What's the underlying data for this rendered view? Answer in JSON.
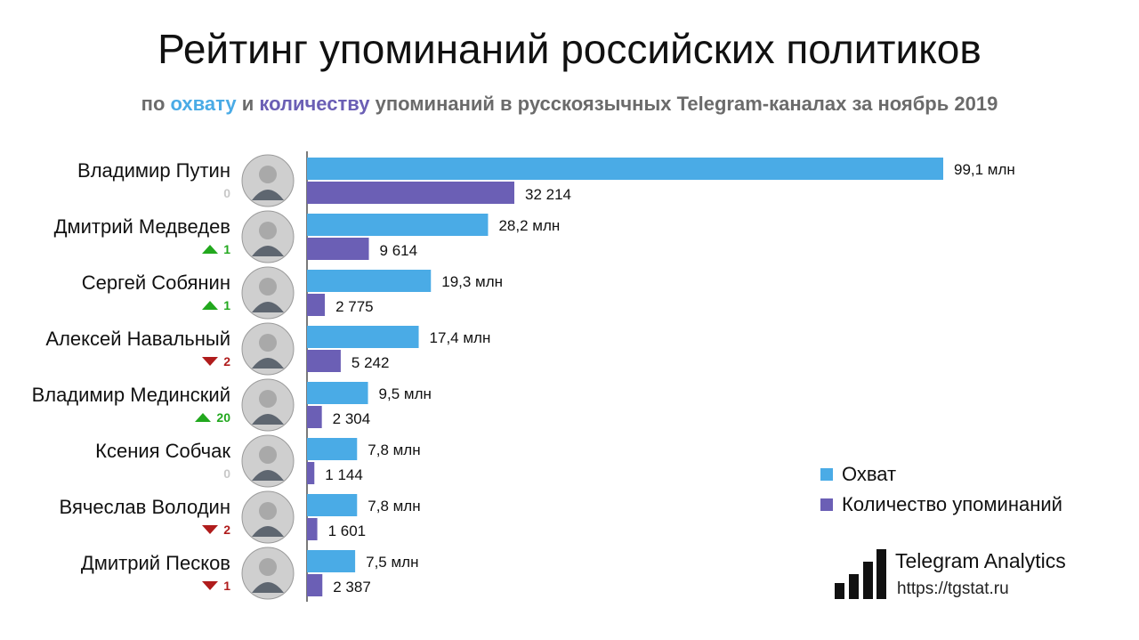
{
  "header": {
    "title": "Рейтинг упоминаний российских политиков",
    "subtitle_pre": "по ",
    "subtitle_reach": "охвату",
    "subtitle_mid": " и ",
    "subtitle_count": "количеству",
    "subtitle_post": " упоминаний в русскоязычных Telegram-каналах за ноябрь 2019"
  },
  "chart_data": {
    "type": "bar",
    "orientation": "horizontal",
    "categories": [
      "Владимир Путин",
      "Дмитрий Медведев",
      "Сергей Собянин",
      "Алексей Навальный",
      "Владимир Мединский",
      "Ксения Собчак",
      "Вячеслав Володин",
      "Дмитрий Песков"
    ],
    "series": [
      {
        "name": "Охват",
        "color": "#4aabe6",
        "values": [
          99.1,
          28.2,
          19.3,
          17.4,
          9.5,
          7.8,
          7.8,
          7.5
        ],
        "labels": [
          "99,1 млн",
          "28,2 млн",
          "19,3 млн",
          "17,4 млн",
          "9,5 млн",
          "7,8 млн",
          "7,8 млн",
          "7,5 млн"
        ]
      },
      {
        "name": "Количество упоминаний",
        "color": "#6b5fb5",
        "values": [
          32214,
          9614,
          2775,
          5242,
          2304,
          1144,
          1601,
          2387
        ],
        "labels": [
          "32 214",
          "9 614",
          "2 775",
          "5 242",
          "2 304",
          "1 144",
          "1 601",
          "2 387"
        ]
      }
    ],
    "rank_changes": [
      {
        "direction": "none",
        "value": "0"
      },
      {
        "direction": "up",
        "value": "1"
      },
      {
        "direction": "up",
        "value": "1"
      },
      {
        "direction": "down",
        "value": "2"
      },
      {
        "direction": "up",
        "value": "20"
      },
      {
        "direction": "none",
        "value": "0"
      },
      {
        "direction": "down",
        "value": "2"
      },
      {
        "direction": "down",
        "value": "1"
      }
    ],
    "status_colors": {
      "up": "#22a81e",
      "down": "#b01c1c",
      "none": "#c8c8c8"
    },
    "legend_placement": "bottom-right",
    "grid": false
  },
  "legend": {
    "items": [
      {
        "label": "Охват",
        "color": "#4aabe6"
      },
      {
        "label": "Количество упоминаний",
        "color": "#6b5fb5"
      }
    ]
  },
  "brand": {
    "name": "Telegram Analytics",
    "url": "https://tgstat.ru",
    "icon": "signal-bars-icon"
  }
}
